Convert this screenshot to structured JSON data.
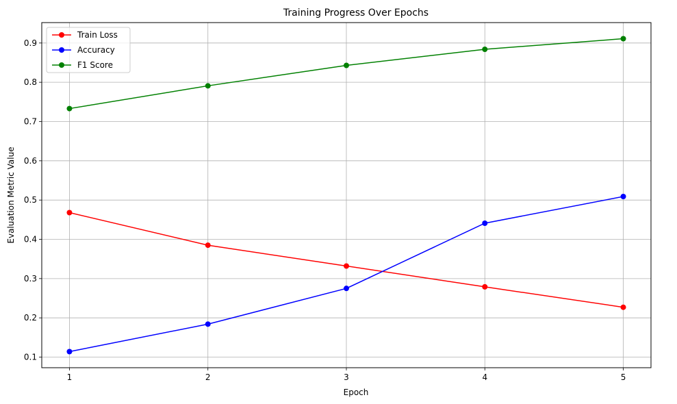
{
  "chart_data": {
    "type": "line",
    "title": "Training Progress Over Epochs",
    "xlabel": "Epoch",
    "ylabel": "Evaluation Metric Value",
    "x": [
      1,
      2,
      3,
      4,
      5
    ],
    "x_ticks": [
      "1",
      "2",
      "3",
      "4",
      "5"
    ],
    "y_ticks": [
      "0.1",
      "0.2",
      "0.3",
      "0.4",
      "0.5",
      "0.6",
      "0.7",
      "0.8",
      "0.9"
    ],
    "xlim": [
      0.8,
      5.2
    ],
    "ylim": [
      0.073,
      0.952
    ],
    "grid": true,
    "legend_position": "top-left",
    "series": [
      {
        "name": "Train Loss",
        "color": "#ff0000",
        "marker": "circle",
        "values": [
          0.468,
          0.385,
          0.332,
          0.279,
          0.227
        ]
      },
      {
        "name": "Accuracy",
        "color": "#0000ff",
        "marker": "circle",
        "values": [
          0.114,
          0.184,
          0.275,
          0.441,
          0.509
        ]
      },
      {
        "name": "F1 Score",
        "color": "#008000",
        "marker": "circle",
        "values": [
          0.733,
          0.791,
          0.843,
          0.884,
          0.911
        ]
      }
    ]
  }
}
